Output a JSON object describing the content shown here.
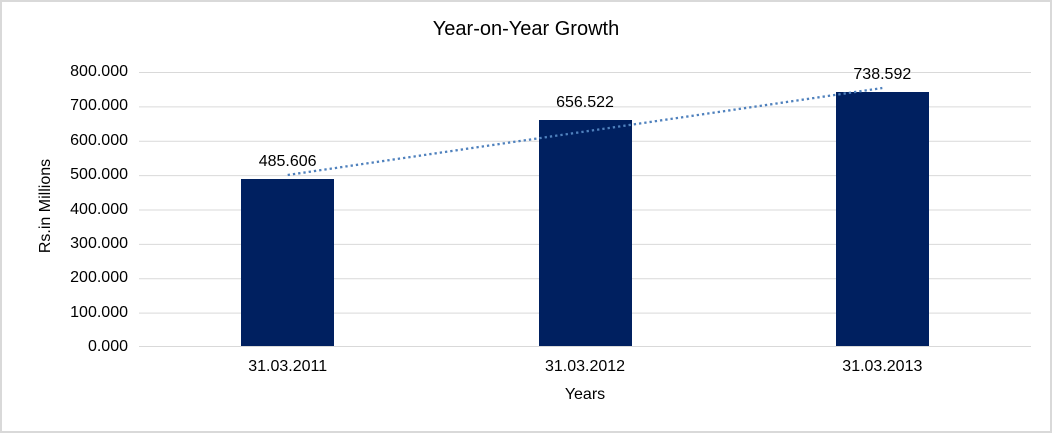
{
  "window": {
    "background": "#ffffff",
    "frame_border_color": "#d9d9d9"
  },
  "chart_data": {
    "type": "bar",
    "title": "Year-on-Year Growth",
    "xlabel": "Years",
    "ylabel": "Rs.in Millions",
    "categories": [
      "31.03.2011",
      "31.03.2012",
      "31.03.2013"
    ],
    "values": [
      485.606,
      656.522,
      738.592
    ],
    "data_labels": [
      "485.606",
      "656.522",
      "738.592"
    ],
    "ylim": [
      0,
      800
    ],
    "ytick_step": 100,
    "yticks": [
      "800.000",
      "700.000",
      "600.000",
      "500.000",
      "400.000",
      "300.000",
      "200.000",
      "100.000",
      "0.000"
    ],
    "grid": true,
    "legend": "none",
    "bar_color": "#002060",
    "gridline_color": "#d9d9d9",
    "text_color": "#000000",
    "trendline": {
      "type": "linear",
      "style": "dotted",
      "color": "#4f81bd"
    }
  }
}
